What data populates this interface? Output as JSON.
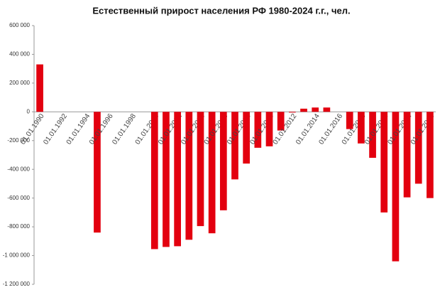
{
  "chart_data": {
    "type": "bar",
    "title": "Естественный прирост населения РФ 1980-2024 г.г., чел.",
    "categories": [
      "01.01.1990",
      null,
      "01.01.1992",
      null,
      "01.01.1994",
      null,
      "01.01.1996",
      null,
      "01.01.1998",
      null,
      "01.01.2000",
      null,
      "01.01.2002",
      null,
      "01.01.2004",
      null,
      "01.01.2006",
      null,
      "01.01.2008",
      null,
      "01.01.2010",
      null,
      "01.01.2012",
      null,
      "01.01.2014",
      null,
      "01.01.2016",
      null,
      "01.01.2018",
      null,
      "01.01.2020",
      null,
      "01.01.2022",
      null,
      "01.01.2024"
    ],
    "values": [
      330000,
      null,
      null,
      null,
      null,
      -840000,
      null,
      null,
      null,
      null,
      -955000,
      -940000,
      -935000,
      -890000,
      -795000,
      -845000,
      -685000,
      -470000,
      -360000,
      -250000,
      -240000,
      -130000,
      -5000,
      22000,
      30000,
      30000,
      null,
      -120000,
      -220000,
      -320000,
      -700000,
      -1040000,
      -595000,
      -500000,
      -600000
    ],
    "color": "#e3000f",
    "ylim": [
      -1200000,
      600000
    ],
    "yticks": [
      {
        "value": 600000,
        "label": "600 000"
      },
      {
        "value": 400000,
        "label": "400 000"
      },
      {
        "value": 200000,
        "label": "200 000"
      },
      {
        "value": 0,
        "label": "0"
      },
      {
        "value": -200000,
        "label": "-200 000"
      },
      {
        "value": -400000,
        "label": "-400 000"
      },
      {
        "value": -600000,
        "label": "-600 000"
      },
      {
        "value": -800000,
        "label": "-800 000"
      },
      {
        "value": -1000000,
        "label": "-1 000 000"
      },
      {
        "value": -1200000,
        "label": "-1 200 000"
      }
    ]
  }
}
